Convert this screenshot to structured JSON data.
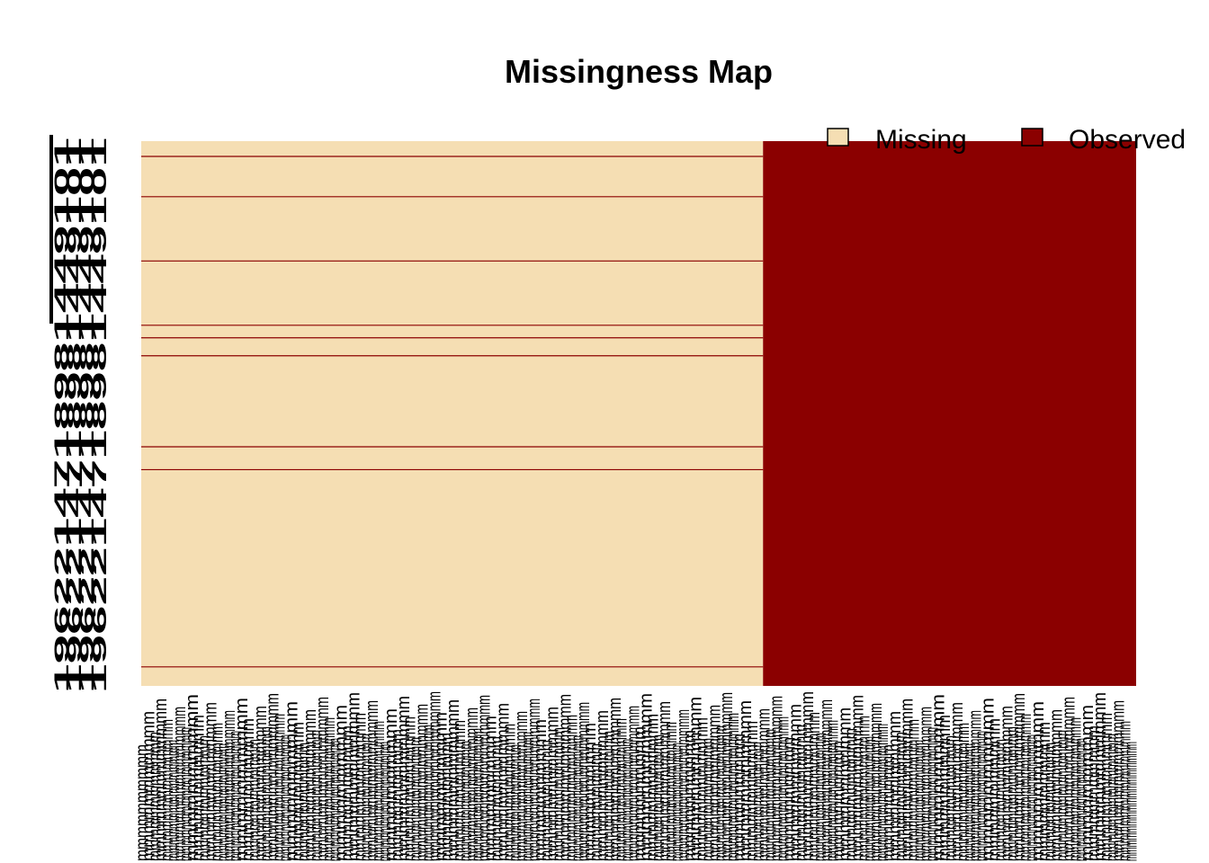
{
  "chart_data": {
    "type": "heatmap",
    "title": "Missingness Map",
    "legend": {
      "placement": "top-right",
      "entries": [
        {
          "label": "Missing",
          "color": "#F5DEB3"
        },
        {
          "label": "Observed",
          "color": "#8B0000"
        }
      ]
    },
    "colors": {
      "missing": "#F5DEB3",
      "observed": "#8B0000"
    },
    "n_columns": 160,
    "n_rows": 19622,
    "observed_column_range": [
      101,
      160
    ],
    "complete_row_fractions": [
      0.028,
      0.102,
      0.22,
      0.338,
      0.361,
      0.394,
      0.561,
      0.603,
      0.965
    ],
    "y_tick_labels": [
      "19622",
      "14718",
      "9814",
      "4910",
      "1"
    ],
    "x_tick_labels_note": "160 overlapping rotated variable names, illegible"
  }
}
